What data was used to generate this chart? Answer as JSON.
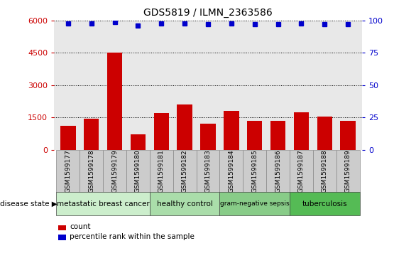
{
  "title": "GDS5819 / ILMN_2363586",
  "samples": [
    "GSM1599177",
    "GSM1599178",
    "GSM1599179",
    "GSM1599180",
    "GSM1599181",
    "GSM1599182",
    "GSM1599183",
    "GSM1599184",
    "GSM1599185",
    "GSM1599186",
    "GSM1599187",
    "GSM1599188",
    "GSM1599189"
  ],
  "counts": [
    1100,
    1450,
    4500,
    700,
    1700,
    2100,
    1200,
    1800,
    1350,
    1350,
    1750,
    1550,
    1350
  ],
  "percentile_ranks": [
    98,
    98,
    99,
    96,
    98,
    98,
    97,
    98,
    97,
    97,
    98,
    97,
    97
  ],
  "bar_color": "#cc0000",
  "dot_color": "#0000cc",
  "ylim_left": [
    0,
    6000
  ],
  "ylim_right": [
    0,
    100
  ],
  "yticks_left": [
    0,
    1500,
    3000,
    4500,
    6000
  ],
  "yticks_right": [
    0,
    25,
    50,
    75,
    100
  ],
  "groups": [
    {
      "label": "metastatic breast cancer",
      "start": 0,
      "end": 4,
      "color": "#cceecc"
    },
    {
      "label": "healthy control",
      "start": 4,
      "end": 7,
      "color": "#aaddaa"
    },
    {
      "label": "gram-negative sepsis",
      "start": 7,
      "end": 10,
      "color": "#88cc88"
    },
    {
      "label": "tuberculosis",
      "start": 10,
      "end": 13,
      "color": "#55bb55"
    }
  ],
  "disease_state_label": "disease state",
  "legend_count_label": "count",
  "legend_percentile_label": "percentile rank within the sample",
  "background_color": "#ffffff",
  "plot_bg_color": "#e8e8e8",
  "sample_box_color": "#cccccc",
  "grid_color": "#000000",
  "tick_color_left": "#cc0000",
  "tick_color_right": "#0000cc"
}
